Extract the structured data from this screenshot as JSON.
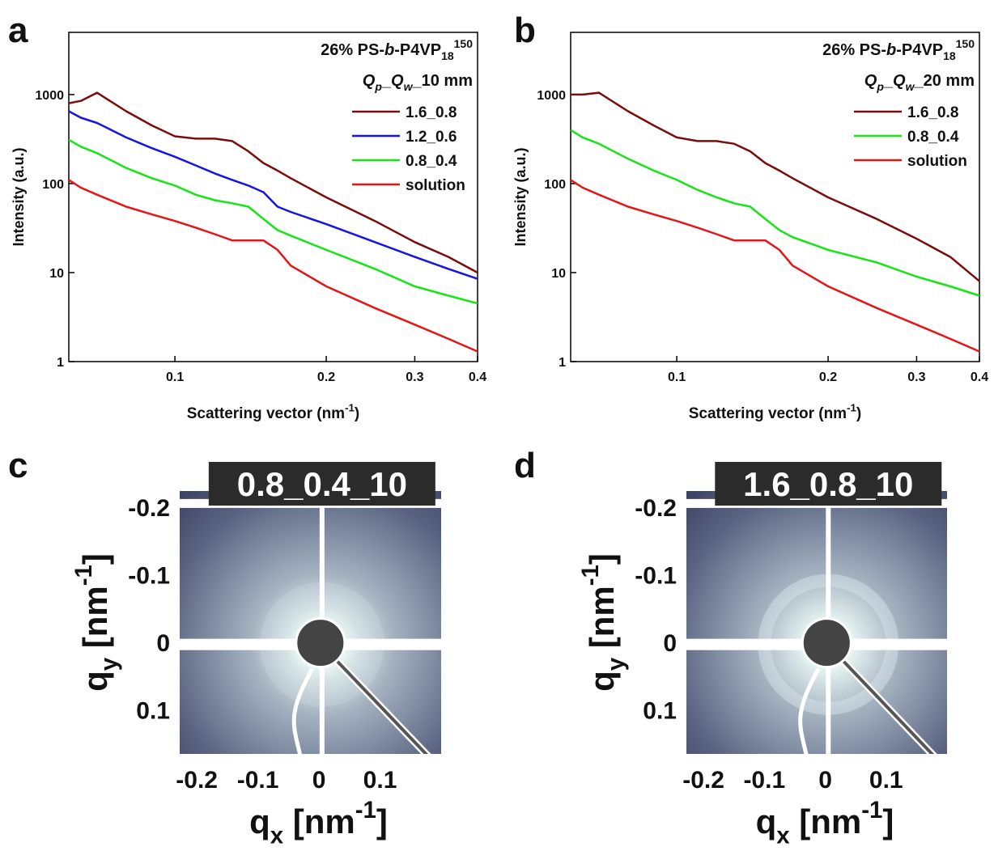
{
  "chart_data": [
    {
      "type": "line",
      "panel": "a",
      "title": [
        "26% PS-",
        "b",
        "-P4VP",
        "18",
        "150"
      ],
      "legend_title": [
        "Q",
        "p",
        "_",
        "Q",
        "w",
        "_",
        "10 mm"
      ],
      "x": [
        0.0615,
        0.065,
        0.07,
        0.08,
        0.09,
        0.1,
        0.11,
        0.12,
        0.13,
        0.14,
        0.15,
        0.16,
        0.17,
        0.2,
        0.25,
        0.3,
        0.35,
        0.4
      ],
      "series": [
        {
          "name": "1.6_0.8",
          "color": "#7a0c0c",
          "values": [
            800,
            850,
            1050,
            650,
            450,
            340,
            320,
            320,
            300,
            230,
            170,
            140,
            115,
            70,
            38,
            22,
            15,
            10
          ]
        },
        {
          "name": "1.2_0.6",
          "color": "#1414e6",
          "values": [
            650,
            550,
            480,
            330,
            250,
            200,
            160,
            130,
            110,
            95,
            80,
            55,
            48,
            35,
            22,
            15,
            11,
            8.5
          ]
        },
        {
          "name": "0.8_0.4",
          "color": "#14e614",
          "values": [
            310,
            260,
            220,
            150,
            115,
            95,
            75,
            65,
            60,
            55,
            40,
            30,
            26,
            18,
            11,
            7,
            5.5,
            4.5
          ]
        },
        {
          "name": "solution",
          "color": "#e61414",
          "values": [
            110,
            90,
            75,
            55,
            45,
            38,
            32,
            27,
            23,
            23,
            23,
            18,
            12,
            7,
            4,
            2.6,
            1.8,
            1.3
          ]
        }
      ],
      "xlim": [
        0.0615,
        0.4
      ],
      "ylim": [
        1,
        5000
      ],
      "xticks": [
        0.1,
        0.2,
        0.3,
        0.4
      ],
      "yticks": [
        1,
        10,
        100,
        1000
      ],
      "xscale": "log",
      "yscale": "log",
      "legend": "upper right",
      "xlabel": [
        "Scattering vector (nm",
        "-1",
        ")"
      ],
      "ylabel": "Intensity (a.u.)"
    },
    {
      "type": "line",
      "panel": "b",
      "title": [
        "26% PS-",
        "b",
        "-P4VP",
        "18",
        "150"
      ],
      "legend_title": [
        "Q",
        "p",
        "_",
        "Q",
        "w",
        "_",
        "20 mm"
      ],
      "x": [
        0.0615,
        0.065,
        0.07,
        0.08,
        0.09,
        0.1,
        0.11,
        0.12,
        0.13,
        0.14,
        0.15,
        0.16,
        0.17,
        0.2,
        0.25,
        0.3,
        0.35,
        0.4
      ],
      "series": [
        {
          "name": "1.6_0.8",
          "color": "#7a0c0c",
          "values": [
            1000,
            1000,
            1050,
            650,
            450,
            330,
            300,
            300,
            280,
            230,
            170,
            140,
            115,
            70,
            40,
            24,
            15,
            8
          ]
        },
        {
          "name": "0.8_0.4",
          "color": "#14e614",
          "values": [
            400,
            330,
            280,
            190,
            140,
            110,
            85,
            70,
            60,
            55,
            40,
            30,
            25,
            18,
            13,
            9,
            7,
            5.5
          ]
        },
        {
          "name": "solution",
          "color": "#e61414",
          "values": [
            110,
            90,
            75,
            55,
            45,
            38,
            32,
            27,
            23,
            23,
            23,
            18,
            12,
            7,
            4,
            2.6,
            1.8,
            1.3
          ]
        }
      ],
      "xlim": [
        0.0615,
        0.4
      ],
      "ylim": [
        1,
        5000
      ],
      "xticks": [
        0.1,
        0.2,
        0.3,
        0.4
      ],
      "yticks": [
        1,
        10,
        100,
        1000
      ],
      "xscale": "log",
      "yscale": "log",
      "legend": "upper right",
      "xlabel": [
        "Scattering vector (nm",
        "-1",
        ")"
      ],
      "ylabel": "Intensity (a.u.)"
    },
    {
      "type": "image",
      "panel": "c",
      "image_label": "0.8_0.4_10",
      "xlim": [
        -0.228,
        0.2
      ],
      "ylim": [
        -0.224,
        0.165
      ],
      "xticks": [
        -0.2,
        -0.1,
        0,
        0.1
      ],
      "yticks": [
        -0.2,
        -0.1,
        0,
        0.1
      ],
      "xlabel": [
        "q",
        "x",
        " [nm",
        "-1",
        "]"
      ],
      "ylabel": [
        "q",
        "y",
        " [nm",
        "-1",
        "]"
      ]
    },
    {
      "type": "image",
      "panel": "d",
      "image_label": "1.6_0.8_10",
      "xlim": [
        -0.228,
        0.2
      ],
      "ylim": [
        -0.224,
        0.165
      ],
      "xticks": [
        -0.2,
        -0.1,
        0,
        0.1
      ],
      "yticks": [
        -0.2,
        -0.1,
        0,
        0.1
      ],
      "xlabel": [
        "q",
        "x",
        " [nm",
        "-1",
        "]"
      ],
      "ylabel": [
        "q",
        "y",
        " [nm",
        "-1",
        "]"
      ]
    }
  ]
}
